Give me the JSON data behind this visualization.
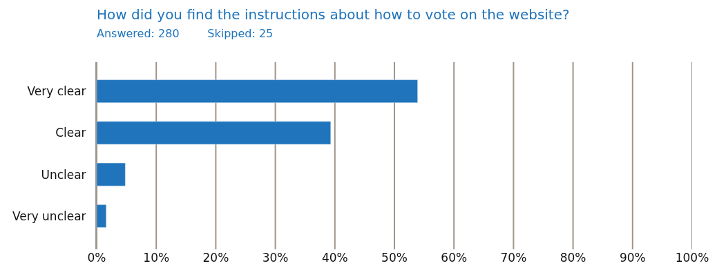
{
  "chart_data": {
    "type": "bar",
    "orientation": "horizontal",
    "title": "How did you find the instructions about how to vote on the website?",
    "subtitle": "Answered: 280        Skipped: 25",
    "categories": [
      "Very clear",
      "Clear",
      "Unclear",
      "Very unclear"
    ],
    "values": [
      53.9,
      39.3,
      4.8,
      1.6
    ],
    "color": "#1f74bc",
    "xlim": [
      0,
      100
    ],
    "xticks": [
      {
        "value": 0,
        "label": "0%"
      },
      {
        "value": 10,
        "label": "10%"
      },
      {
        "value": 20,
        "label": "20%"
      },
      {
        "value": 30,
        "label": "30%"
      },
      {
        "value": 40,
        "label": "40%"
      },
      {
        "value": 50,
        "label": "50%"
      },
      {
        "value": 60,
        "label": "60%"
      },
      {
        "value": 70,
        "label": "70%"
      },
      {
        "value": 80,
        "label": "80%"
      },
      {
        "value": 90,
        "label": "90%"
      },
      {
        "value": 100,
        "label": "100%"
      }
    ],
    "grid": "x",
    "legend": false
  }
}
